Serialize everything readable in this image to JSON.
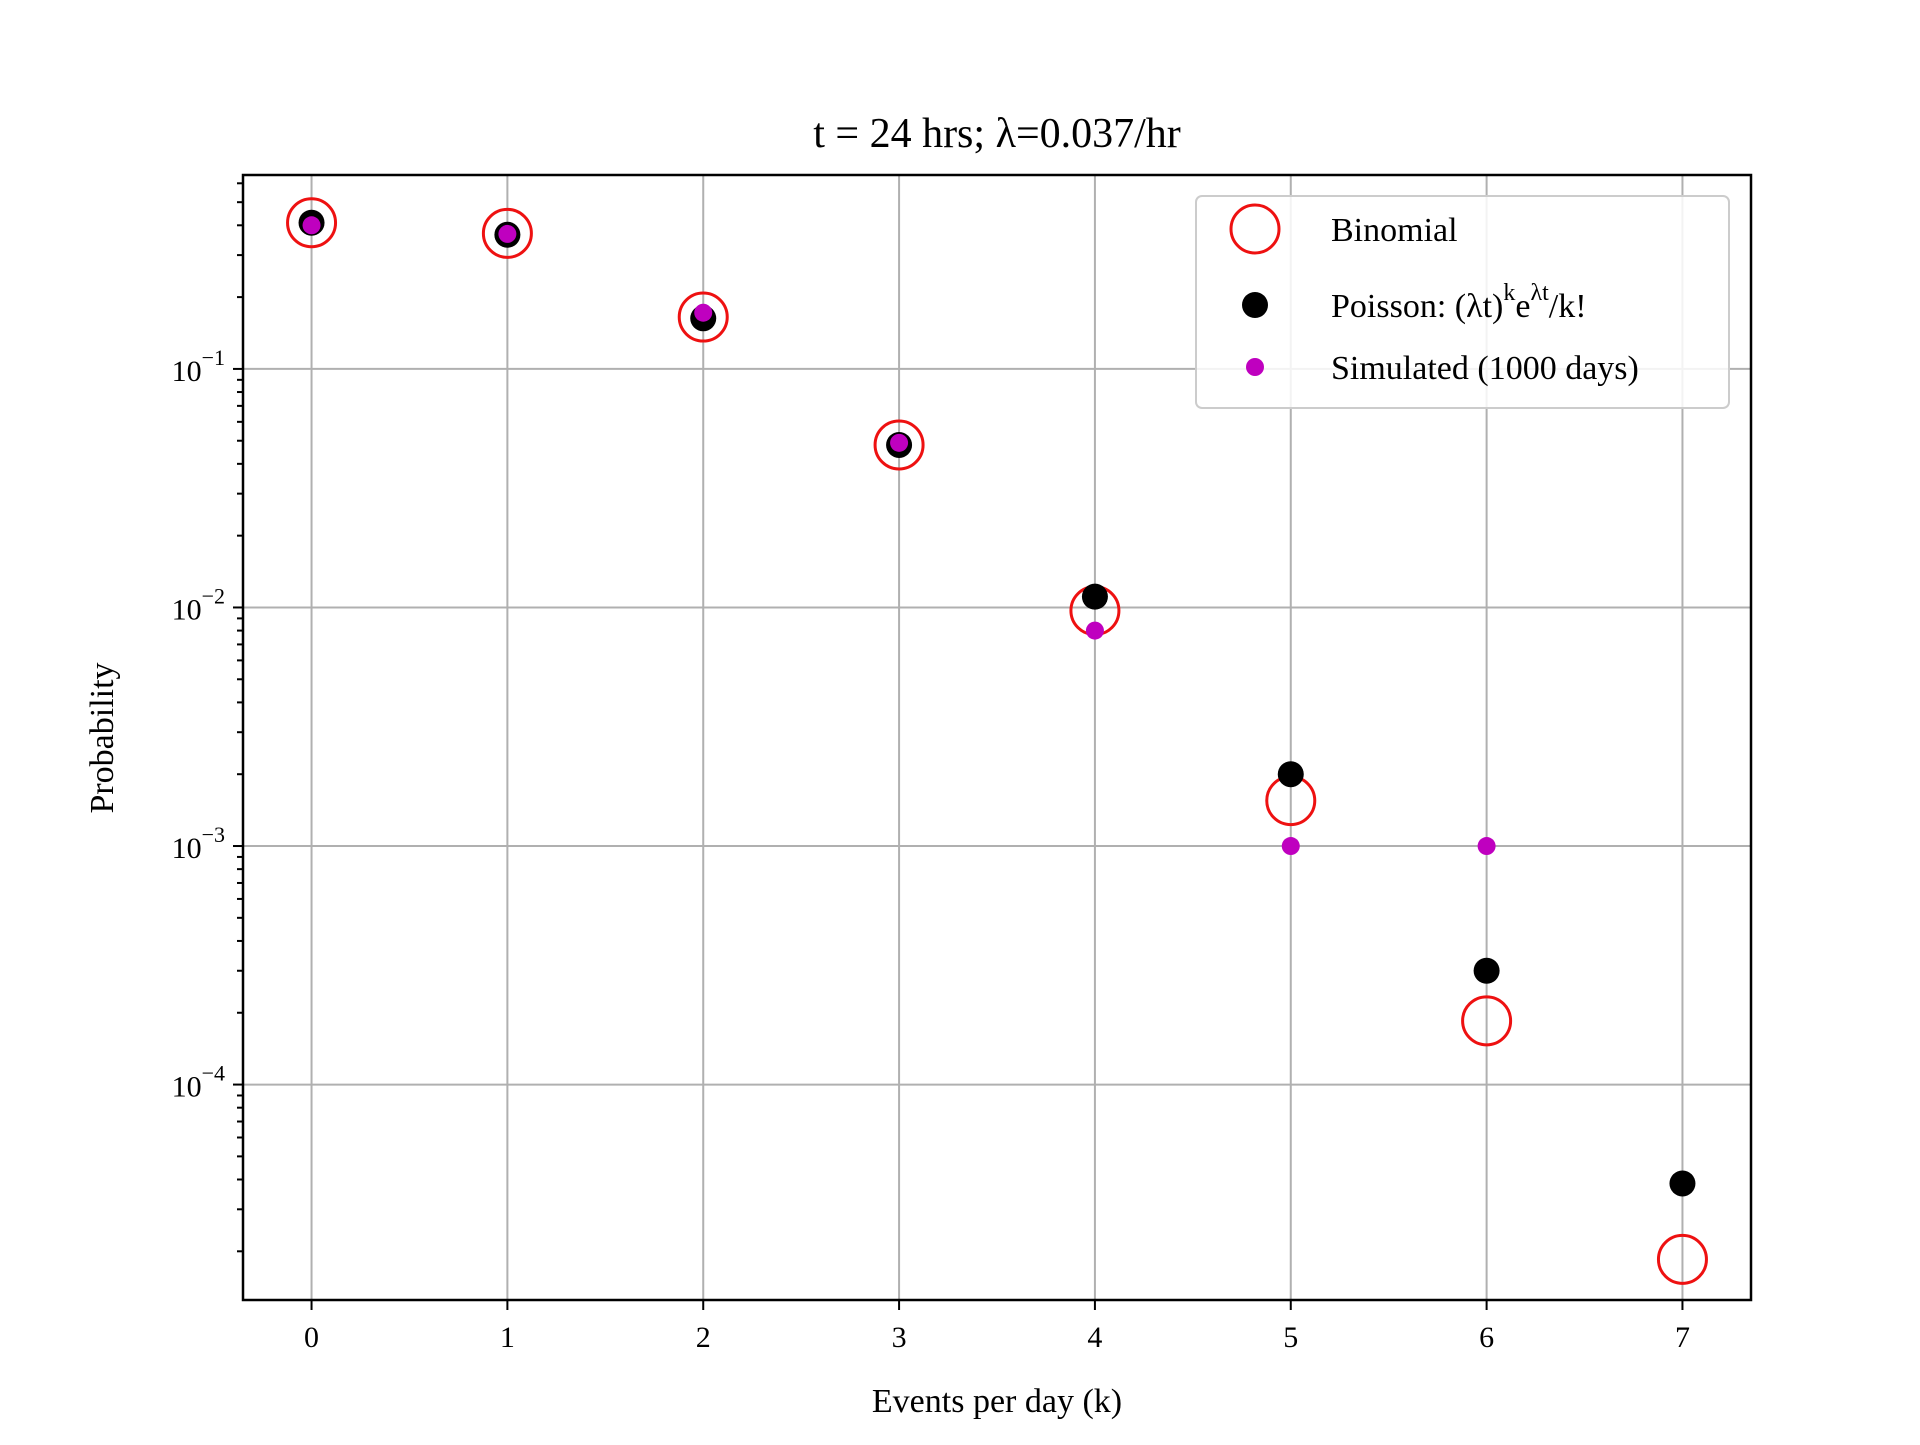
{
  "chart_data": {
    "type": "scatter",
    "title": "t = 24 hrs; λ=0.037/hr",
    "xlabel": "Events per day (k)",
    "ylabel": "Probability",
    "x_ticks": [
      0,
      1,
      2,
      3,
      4,
      5,
      6,
      7
    ],
    "y_scale": "log",
    "y_ticks": [
      {
        "value": 0.1,
        "base": "10",
        "exp": "−1"
      },
      {
        "value": 0.01,
        "base": "10",
        "exp": "−2"
      },
      {
        "value": 0.001,
        "base": "10",
        "exp": "−3"
      },
      {
        "value": 0.0001,
        "base": "10",
        "exp": "−4"
      }
    ],
    "xlim": [
      -0.35,
      7.35
    ],
    "ylim": [
      1.25e-05,
      0.65
    ],
    "grid": true,
    "legend_position": "top-right",
    "series": [
      {
        "name": "Binomial",
        "marker": "open-circle",
        "color": "#ee1111",
        "x": [
          0,
          1,
          2,
          3,
          4,
          5,
          6,
          7
        ],
        "y": [
          0.41,
          0.37,
          0.165,
          0.048,
          0.0097,
          0.00155,
          0.000185,
          1.85e-05
        ]
      },
      {
        "name_prefix": "Poisson: (λt)",
        "name_sup1": "k",
        "name_mid": "e",
        "name_sup2": "λt",
        "name_suffix": "/k!",
        "marker": "filled-circle",
        "color": "#000000",
        "x": [
          0,
          1,
          2,
          3,
          4,
          5,
          6,
          7
        ],
        "y": [
          0.41,
          0.365,
          0.163,
          0.048,
          0.0111,
          0.002,
          0.0003,
          3.85e-05
        ]
      },
      {
        "name": "Simulated (1000 days)",
        "marker": "small-circle",
        "color": "#bf00bf",
        "x": [
          0,
          1,
          2,
          3,
          4,
          5,
          6
        ],
        "y": [
          0.4,
          0.368,
          0.172,
          0.049,
          0.008,
          0.001,
          0.001
        ]
      }
    ]
  }
}
